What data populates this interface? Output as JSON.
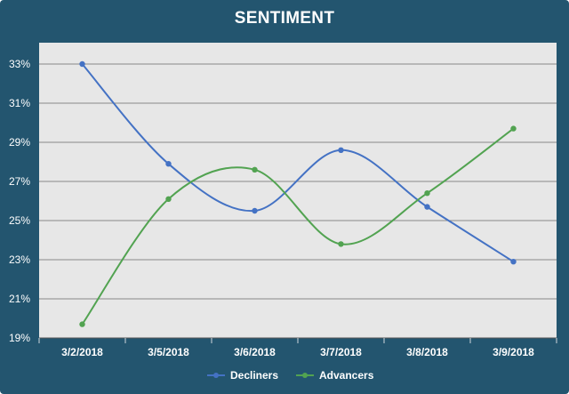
{
  "chart_data": {
    "type": "line",
    "title": "SENTIMENT",
    "categories": [
      "3/2/2018",
      "3/5/2018",
      "3/6/2018",
      "3/7/2018",
      "3/8/2018",
      "3/9/2018"
    ],
    "series": [
      {
        "name": "Decliners",
        "color": "#4472c4",
        "values": [
          33.0,
          27.9,
          25.5,
          28.6,
          25.7,
          22.9
        ]
      },
      {
        "name": "Advancers",
        "color": "#52a351",
        "values": [
          19.7,
          26.1,
          27.6,
          23.8,
          26.4,
          29.7
        ]
      }
    ],
    "yticks": [
      "19%",
      "21%",
      "23%",
      "25%",
      "27%",
      "29%",
      "31%",
      "33%"
    ],
    "ylim": [
      19,
      34
    ],
    "grid": true,
    "smooth": true,
    "legend_position": "bottom",
    "plot_background": "#e7e7e7",
    "frame_color": "#23556f"
  }
}
